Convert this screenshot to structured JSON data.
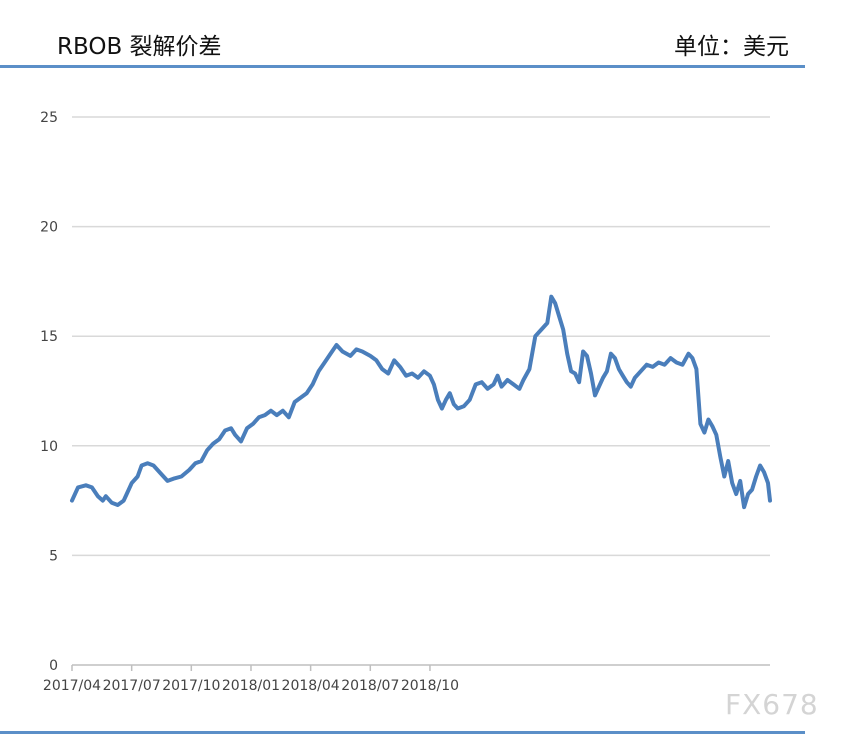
{
  "header": {
    "title": "RBOB 裂解价差",
    "unit": "单位：美元"
  },
  "watermark": "FX678",
  "chart_data": {
    "type": "line",
    "title": "RBOB 裂解价差",
    "ylabel": "",
    "xlabel": "",
    "ylim": [
      0,
      25
    ],
    "yticks": [
      0,
      5,
      10,
      15,
      20,
      25
    ],
    "xticks": [
      "2017/04",
      "2017/07",
      "2017/10",
      "2018/01",
      "2018/04",
      "2018/07",
      "2018/10"
    ],
    "grid": true,
    "line_color": "#4a7ebb",
    "series": [
      {
        "values": [
          [
            0,
            7.5
          ],
          [
            0.3,
            8.1
          ],
          [
            0.7,
            8.2
          ],
          [
            1,
            8.1
          ],
          [
            1.3,
            7.7
          ],
          [
            1.55,
            7.5
          ],
          [
            1.7,
            7.7
          ],
          [
            2,
            7.4
          ],
          [
            2.3,
            7.3
          ],
          [
            2.6,
            7.5
          ],
          [
            3,
            8.3
          ],
          [
            3.3,
            8.6
          ],
          [
            3.5,
            9.1
          ],
          [
            3.8,
            9.2
          ],
          [
            4.1,
            9.1
          ],
          [
            4.4,
            8.8
          ],
          [
            4.8,
            8.4
          ],
          [
            5.1,
            8.5
          ],
          [
            5.5,
            8.6
          ],
          [
            5.9,
            8.9
          ],
          [
            6.2,
            9.2
          ],
          [
            6.5,
            9.3
          ],
          [
            6.8,
            9.8
          ],
          [
            7.1,
            10.1
          ],
          [
            7.4,
            10.3
          ],
          [
            7.7,
            10.7
          ],
          [
            8,
            10.8
          ],
          [
            8.2,
            10.5
          ],
          [
            8.5,
            10.2
          ],
          [
            8.8,
            10.8
          ],
          [
            9.1,
            11.0
          ],
          [
            9.4,
            11.3
          ],
          [
            9.7,
            11.4
          ],
          [
            10,
            11.6
          ],
          [
            10.3,
            11.4
          ],
          [
            10.6,
            11.6
          ],
          [
            10.9,
            11.3
          ],
          [
            11.2,
            12.0
          ],
          [
            11.5,
            12.2
          ],
          [
            11.8,
            12.4
          ],
          [
            12.1,
            12.8
          ],
          [
            12.4,
            13.4
          ],
          [
            12.7,
            13.8
          ],
          [
            13,
            14.2
          ],
          [
            13.3,
            14.6
          ],
          [
            13.6,
            14.3
          ],
          [
            14,
            14.1
          ],
          [
            14.3,
            14.4
          ],
          [
            14.6,
            14.3
          ],
          [
            15,
            14.1
          ],
          [
            15.3,
            13.9
          ],
          [
            15.6,
            13.5
          ],
          [
            15.9,
            13.3
          ],
          [
            16.2,
            13.9
          ],
          [
            16.5,
            13.6
          ],
          [
            16.8,
            13.2
          ],
          [
            17.1,
            13.3
          ],
          [
            17.4,
            13.1
          ],
          [
            17.7,
            13.4
          ],
          [
            18,
            13.2
          ],
          [
            18.2,
            12.8
          ],
          [
            18.4,
            12.1
          ],
          [
            18.6,
            11.7
          ],
          [
            18.8,
            12.1
          ],
          [
            19,
            12.4
          ],
          [
            19.2,
            11.9
          ],
          [
            19.4,
            11.7
          ],
          [
            19.7,
            11.8
          ],
          [
            20,
            12.1
          ],
          [
            20.3,
            12.8
          ],
          [
            20.6,
            12.9
          ],
          [
            20.9,
            12.6
          ],
          [
            21.2,
            12.8
          ],
          [
            21.4,
            13.2
          ],
          [
            21.6,
            12.7
          ],
          [
            21.9,
            13.0
          ],
          [
            22.2,
            12.8
          ],
          [
            22.5,
            12.6
          ],
          [
            22.7,
            13.0
          ],
          [
            23,
            13.5
          ],
          [
            23.3,
            15.0
          ],
          [
            23.6,
            15.3
          ],
          [
            23.9,
            15.6
          ],
          [
            24.1,
            16.8
          ],
          [
            24.3,
            16.5
          ],
          [
            24.5,
            15.9
          ],
          [
            24.7,
            15.3
          ],
          [
            24.9,
            14.2
          ],
          [
            25.1,
            13.4
          ],
          [
            25.3,
            13.3
          ],
          [
            25.5,
            12.9
          ],
          [
            25.7,
            14.3
          ],
          [
            25.9,
            14.1
          ],
          [
            26.1,
            13.3
          ],
          [
            26.3,
            12.3
          ],
          [
            26.5,
            12.7
          ],
          [
            26.7,
            13.1
          ],
          [
            26.9,
            13.4
          ],
          [
            27.1,
            14.2
          ],
          [
            27.3,
            14.0
          ],
          [
            27.5,
            13.5
          ],
          [
            27.7,
            13.2
          ],
          [
            27.9,
            12.9
          ],
          [
            28.1,
            12.7
          ],
          [
            28.3,
            13.1
          ],
          [
            28.6,
            13.4
          ],
          [
            28.9,
            13.7
          ],
          [
            29.2,
            13.6
          ],
          [
            29.5,
            13.8
          ],
          [
            29.8,
            13.7
          ],
          [
            30.1,
            14.0
          ],
          [
            30.4,
            13.8
          ],
          [
            30.7,
            13.7
          ],
          [
            31,
            14.2
          ],
          [
            31.2,
            14.0
          ],
          [
            31.4,
            13.5
          ],
          [
            31.6,
            11.0
          ],
          [
            31.8,
            10.6
          ],
          [
            32,
            11.2
          ],
          [
            32.2,
            10.9
          ],
          [
            32.4,
            10.5
          ],
          [
            32.6,
            9.5
          ],
          [
            32.8,
            8.6
          ],
          [
            33,
            9.3
          ],
          [
            33.2,
            8.3
          ],
          [
            33.4,
            7.8
          ],
          [
            33.6,
            8.4
          ],
          [
            33.8,
            7.2
          ],
          [
            34,
            7.8
          ],
          [
            34.2,
            8.0
          ],
          [
            34.4,
            8.6
          ],
          [
            34.6,
            9.1
          ],
          [
            34.8,
            8.8
          ],
          [
            35,
            8.3
          ],
          [
            35.1,
            7.5
          ]
        ]
      }
    ]
  }
}
